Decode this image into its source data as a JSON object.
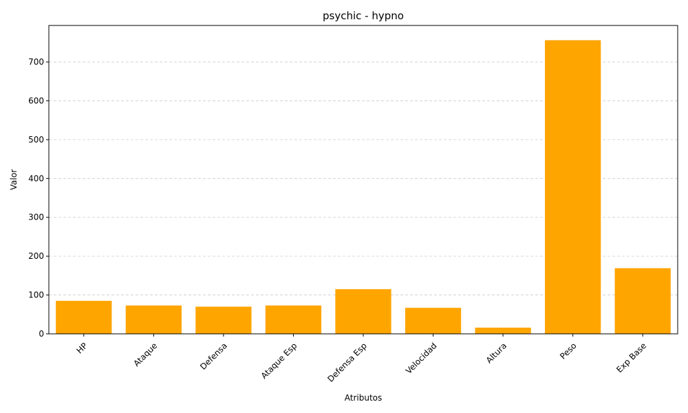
{
  "chart_data": {
    "type": "bar",
    "title": "psychic - hypno",
    "xlabel": "Atributos",
    "ylabel": "Valor",
    "categories": [
      "HP",
      "Ataque",
      "Defensa",
      "Ataque Esp",
      "Defensa Esp",
      "Velocidad",
      "Altura",
      "Peso",
      "Exp Base"
    ],
    "values": [
      85,
      73,
      70,
      73,
      115,
      67,
      16,
      756,
      169
    ],
    "ylim": [
      0,
      794
    ],
    "yticks": [
      0,
      100,
      200,
      300,
      400,
      500,
      600,
      700
    ],
    "grid": "y-dashed",
    "bar_color": "#ffa500"
  }
}
